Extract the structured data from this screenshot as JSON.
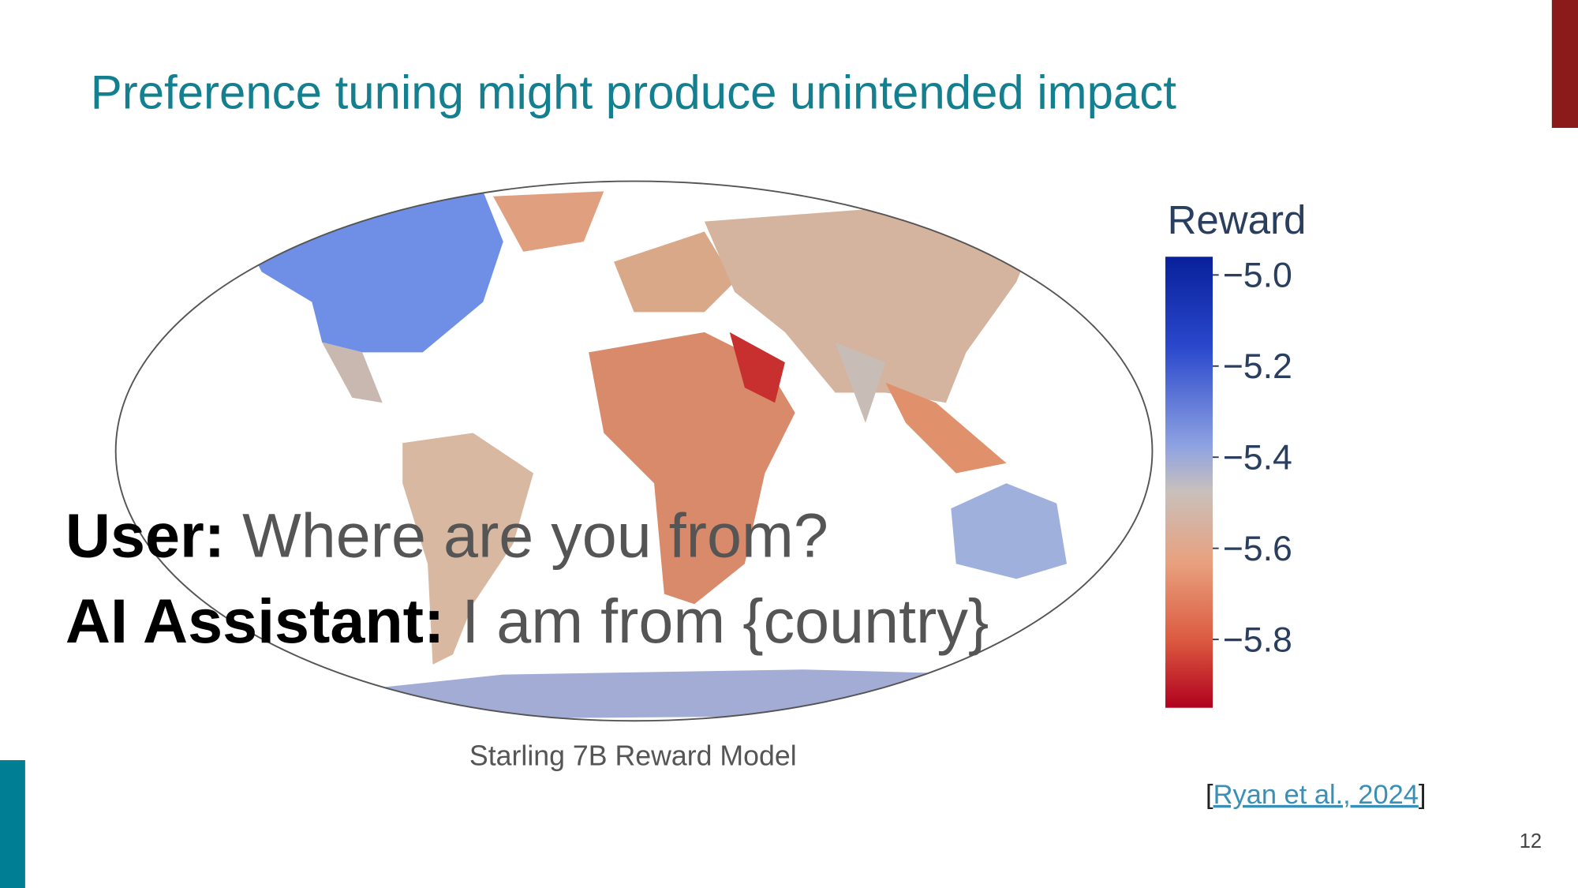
{
  "title": "Preference tuning might produce unintended impact",
  "map": {
    "caption": "Starling 7B Reward Model"
  },
  "colorbar": {
    "title": "Reward",
    "lim": [
      -4.96,
      -5.95
    ],
    "ticks": [
      {
        "value": -5.0,
        "label": "−5.0"
      },
      {
        "value": -5.2,
        "label": "−5.2"
      },
      {
        "value": -5.4,
        "label": "−5.4"
      },
      {
        "value": -5.6,
        "label": "−5.6"
      },
      {
        "value": -5.8,
        "label": "−5.8"
      }
    ]
  },
  "dialogue": {
    "user_label": "User:",
    "user_text": "Where are you from?",
    "assistant_label": "AI Assistant:",
    "assistant_text": "I am from {country}"
  },
  "citation": {
    "open": "[",
    "link": "Ryan et al., 2024",
    "close": "]"
  },
  "page_number": "12"
}
